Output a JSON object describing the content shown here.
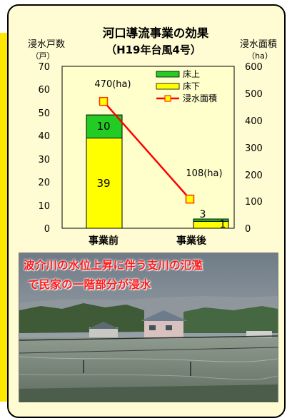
{
  "chart_data": {
    "type": "bar",
    "title": "河口導流事業の効果",
    "subtitle": "（H19年台風4号）",
    "y_left_label": "浸水戸数",
    "y_left_unit": "（戸）",
    "y_right_label": "浸水面積",
    "y_right_unit": "（ha）",
    "ylim_left": [
      0,
      70
    ],
    "ylim_right": [
      0,
      600
    ],
    "yticks_left": [
      0,
      10,
      20,
      30,
      40,
      50,
      60,
      70
    ],
    "yticks_right": [
      0,
      100,
      200,
      300,
      400,
      500,
      600
    ],
    "categories": [
      "事業前",
      "事業後"
    ],
    "series": [
      {
        "name": "床上",
        "kind": "bar",
        "axis": "left",
        "color": "#22cc22",
        "values": [
          10,
          1
        ]
      },
      {
        "name": "床下",
        "kind": "bar",
        "axis": "left",
        "color": "#ffff00",
        "values": [
          39,
          3
        ]
      },
      {
        "name": "浸水面積",
        "kind": "line",
        "axis": "right",
        "color": "#ff0000",
        "marker_color": "#ffff00",
        "values": [
          470,
          108
        ]
      }
    ],
    "data_labels": {
      "floor_above": [
        "10",
        "1"
      ],
      "floor_below": [
        "39",
        "3"
      ],
      "area": [
        "470(ha)",
        "108(ha)"
      ]
    },
    "legend_position": "top-right",
    "grid": false
  },
  "photo": {
    "caption_line1": "波介川の水位上昇に伴う支川の氾濫",
    "caption_line2": "で民家の一階部分が浸水"
  }
}
